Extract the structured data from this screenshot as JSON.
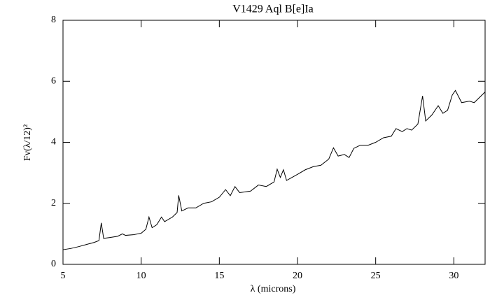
{
  "chart_data": {
    "type": "line",
    "title": "V1429 Aql B[e]Ia",
    "xlabel": "λ (microns)",
    "ylabel": "Fν(λ/12)²",
    "x": [
      5.0,
      5.5,
      6.0,
      6.5,
      7.0,
      7.3,
      7.45,
      7.6,
      8.0,
      8.5,
      8.8,
      9.0,
      9.5,
      10.0,
      10.3,
      10.5,
      10.7,
      11.0,
      11.3,
      11.5,
      12.0,
      12.3,
      12.4,
      12.6,
      13.0,
      13.5,
      14.0,
      14.5,
      15.0,
      15.4,
      15.7,
      16.0,
      16.3,
      17.0,
      17.5,
      18.0,
      18.5,
      18.7,
      18.9,
      19.1,
      19.3,
      20.0,
      20.5,
      21.0,
      21.5,
      22.0,
      22.3,
      22.6,
      23.0,
      23.3,
      23.6,
      24.0,
      24.5,
      25.0,
      25.5,
      26.0,
      26.3,
      26.7,
      27.0,
      27.3,
      27.7,
      28.0,
      28.2,
      28.6,
      29.0,
      29.3,
      29.6,
      29.9,
      30.1,
      30.5,
      31.0,
      31.3,
      31.6,
      32.0
    ],
    "values": [
      0.48,
      0.52,
      0.58,
      0.65,
      0.72,
      0.78,
      1.36,
      0.85,
      0.88,
      0.92,
      1.0,
      0.95,
      0.97,
      1.02,
      1.15,
      1.55,
      1.2,
      1.3,
      1.55,
      1.4,
      1.55,
      1.7,
      2.26,
      1.75,
      1.85,
      1.85,
      2.0,
      2.05,
      2.2,
      2.45,
      2.25,
      2.55,
      2.35,
      2.4,
      2.6,
      2.55,
      2.7,
      3.12,
      2.85,
      3.1,
      2.75,
      2.95,
      3.1,
      3.2,
      3.25,
      3.45,
      3.82,
      3.55,
      3.6,
      3.5,
      3.8,
      3.9,
      3.9,
      4.0,
      4.15,
      4.2,
      4.45,
      4.35,
      4.45,
      4.4,
      4.6,
      5.52,
      4.7,
      4.9,
      5.2,
      4.95,
      5.05,
      5.55,
      5.7,
      5.3,
      5.35,
      5.3,
      5.45,
      5.65
    ],
    "color": "#000000",
    "xlim": [
      5,
      32
    ],
    "xticks": [
      5,
      10,
      15,
      20,
      25,
      30
    ],
    "ylim": [
      0,
      8
    ],
    "yticks": [
      0,
      2,
      4,
      6,
      8
    ]
  }
}
